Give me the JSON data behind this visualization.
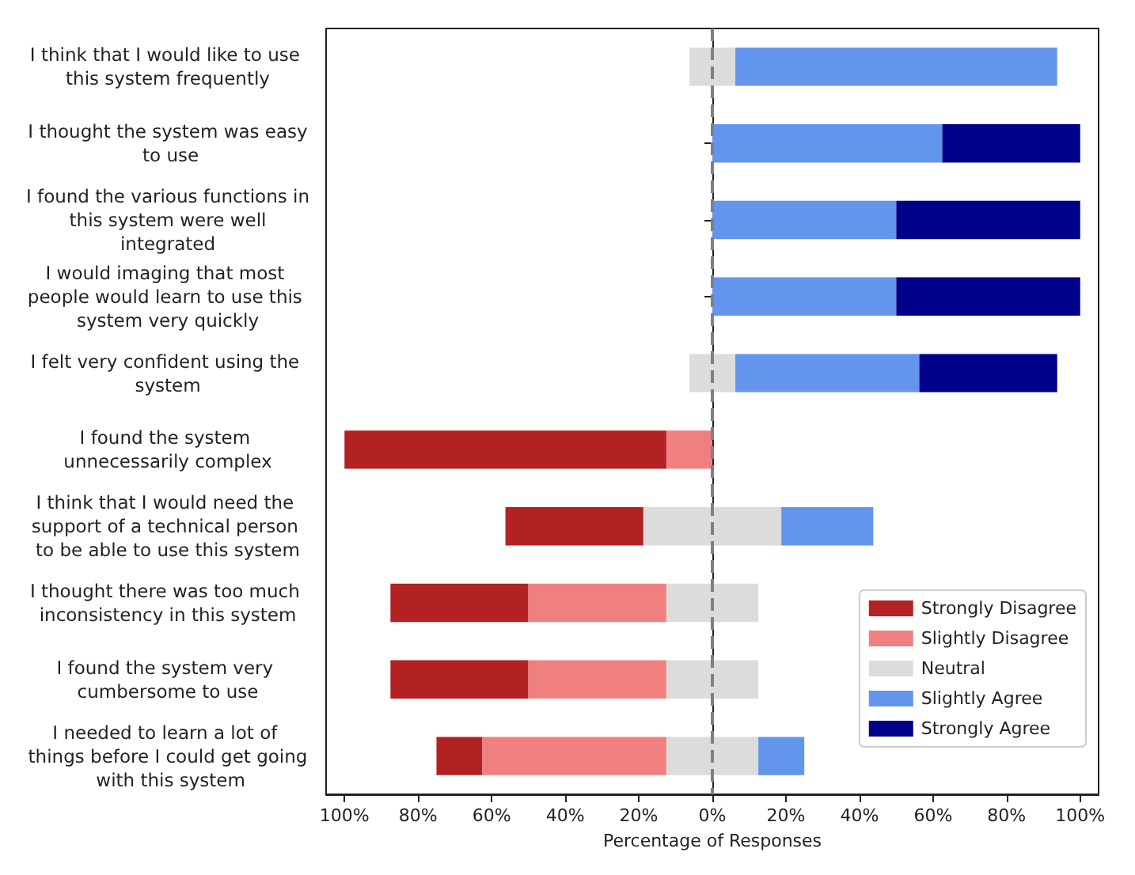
{
  "chart_data": {
    "type": "bar",
    "orientation": "horizontal",
    "xlabel": "Percentage of Responses",
    "categories": [
      "I think that I would like to use this system frequently",
      "I thought the system was easy to use",
      "I found the various functions in this system were well integrated",
      "I would imaging that most people would learn to use this system very quickly",
      "I felt very confident using the system",
      "I found the system unnecessarily complex",
      "I think that I would need the support of a technical person to be able to use this system",
      "I thought there was too much inconsistency in this system",
      "I found the system very cumbersome to use",
      "I needed to learn a lot of things before I could get going with this system"
    ],
    "series": [
      {
        "name": "Strongly Disagree",
        "color": "#b22222",
        "values": [
          null,
          null,
          null,
          null,
          null,
          87.5,
          37.5,
          37.5,
          37.5,
          12.5
        ],
        "base": [
          null,
          null,
          null,
          null,
          null,
          -100,
          -56.25,
          -87.5,
          -87.5,
          -75
        ]
      },
      {
        "name": "Slightly Disagree",
        "color": "#f08080",
        "values": [
          null,
          null,
          null,
          null,
          null,
          12.5,
          null,
          37.5,
          37.5,
          50
        ],
        "base": [
          null,
          null,
          null,
          null,
          null,
          -12.5,
          null,
          -50,
          -50,
          -62.5
        ]
      },
      {
        "name": "Neutral",
        "color": "#dcdcdc",
        "values": [
          12.5,
          null,
          null,
          null,
          12.5,
          null,
          37.5,
          25,
          25,
          25
        ],
        "base": [
          -6.25,
          null,
          null,
          null,
          -6.25,
          null,
          -18.75,
          -12.5,
          -12.5,
          -12.5
        ]
      },
      {
        "name": "Slightly Agree",
        "color": "#6495ed",
        "values": [
          87.5,
          62.5,
          50,
          50,
          50,
          null,
          25,
          null,
          null,
          12.5
        ],
        "base": [
          6.25,
          0,
          0,
          0,
          6.25,
          null,
          18.75,
          null,
          null,
          12.5
        ]
      },
      {
        "name": "Strongly Agree",
        "color": "#00008b",
        "values": [
          null,
          37.5,
          50,
          50,
          37.5,
          null,
          null,
          null,
          null,
          null
        ],
        "base": [
          null,
          62.5,
          50,
          50,
          56.25,
          null,
          null,
          null,
          null,
          null
        ]
      }
    ],
    "xlim": [
      -105,
      105
    ],
    "xticks": [
      {
        "value": -100,
        "label": "100%"
      },
      {
        "value": -80,
        "label": "80%"
      },
      {
        "value": -60,
        "label": "60%"
      },
      {
        "value": -40,
        "label": "40%"
      },
      {
        "value": -20,
        "label": "20%"
      },
      {
        "value": 0,
        "label": "0%"
      },
      {
        "value": 20,
        "label": "20%"
      },
      {
        "value": 40,
        "label": "40%"
      },
      {
        "value": 60,
        "label": "60%"
      },
      {
        "value": 80,
        "label": "80%"
      },
      {
        "value": 100,
        "label": "100%"
      }
    ],
    "ref_lines": [
      {
        "axis": "x",
        "value": 0,
        "color": "#808080",
        "line_style": "dashed"
      }
    ],
    "legend": "bottom right",
    "grid": false
  }
}
